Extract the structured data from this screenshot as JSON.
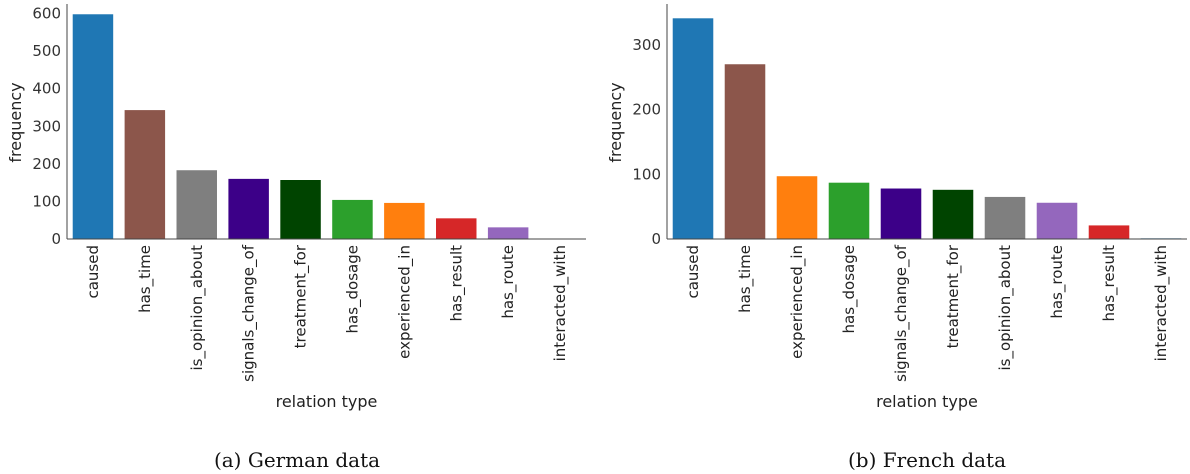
{
  "chart_data": [
    {
      "type": "bar",
      "caption": "(a) German data",
      "xlabel": "relation type",
      "ylabel": "frequency",
      "ylim": [
        0,
        620
      ],
      "yticks": [
        0,
        100,
        200,
        300,
        400,
        500,
        600
      ],
      "grid": false,
      "categories": [
        "caused",
        "has_time",
        "is_opinion_about",
        "signals_change_of",
        "treatment_for",
        "has_dosage",
        "experienced_in",
        "has_result",
        "has_route",
        "interacted_with"
      ],
      "values": [
        598,
        343,
        183,
        160,
        157,
        104,
        96,
        55,
        31,
        1
      ],
      "colors": [
        "#1f77b4",
        "#8c564b",
        "#7f7f7f",
        "#3c0088",
        "#004400",
        "#2ca02c",
        "#ff7f0e",
        "#d62728",
        "#9467bd",
        "#1f77b4"
      ]
    },
    {
      "type": "bar",
      "caption": "(b) French data",
      "xlabel": "relation type",
      "ylabel": "frequency",
      "ylim": [
        0,
        360
      ],
      "yticks": [
        0,
        100,
        200,
        300
      ],
      "grid": false,
      "categories": [
        "caused",
        "has_time",
        "experienced_in",
        "has_dosage",
        "signals_change_of",
        "treatment_for",
        "is_opinion_about",
        "has_route",
        "has_result",
        "interacted_with"
      ],
      "values": [
        341,
        270,
        97,
        87,
        78,
        76,
        65,
        56,
        21,
        1
      ],
      "colors": [
        "#1f77b4",
        "#8c564b",
        "#ff7f0e",
        "#2ca02c",
        "#3c0088",
        "#004400",
        "#7f7f7f",
        "#9467bd",
        "#d62728",
        "#1f77b4"
      ]
    }
  ]
}
